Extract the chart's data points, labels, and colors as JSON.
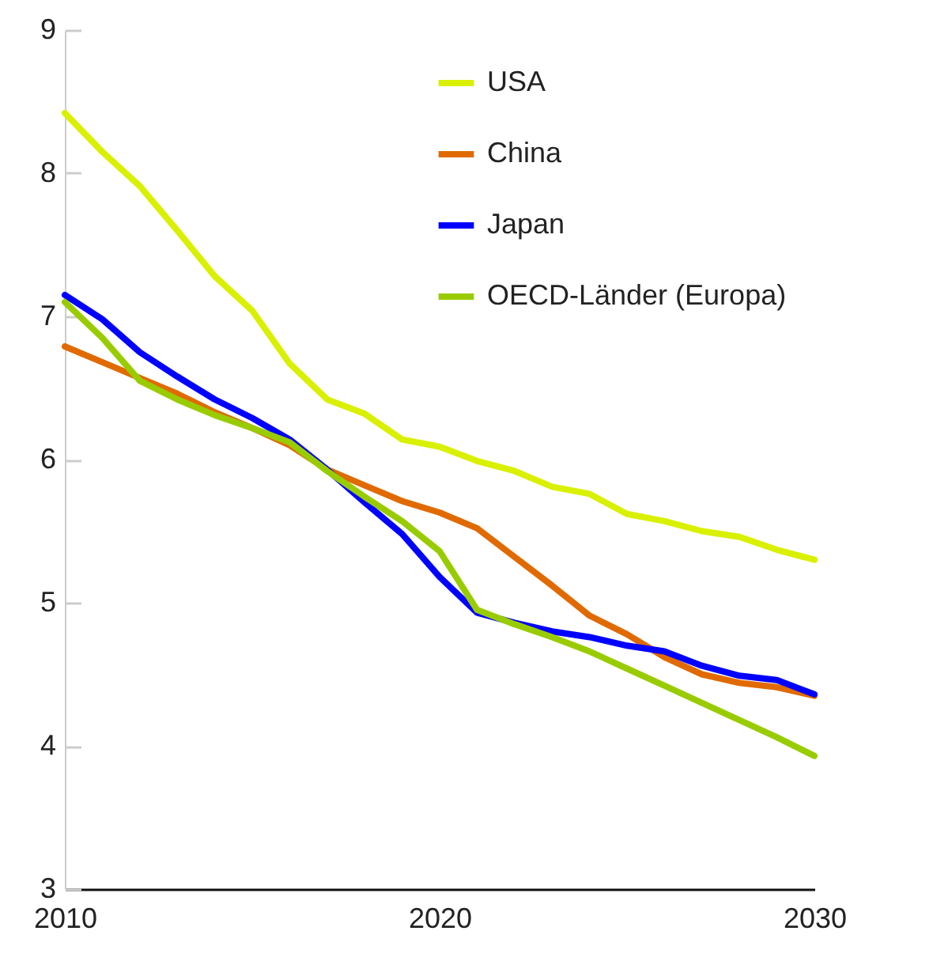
{
  "chart_data": {
    "type": "line",
    "x": [
      2010,
      2011,
      2012,
      2013,
      2014,
      2015,
      2016,
      2017,
      2018,
      2019,
      2020,
      2021,
      2022,
      2023,
      2024,
      2025,
      2026,
      2027,
      2028,
      2029,
      2030
    ],
    "series": [
      {
        "name": "USA",
        "color": "#d9f000",
        "values": [
          8.42,
          8.15,
          7.91,
          7.6,
          7.28,
          7.04,
          6.67,
          6.42,
          6.32,
          6.14,
          6.09,
          5.99,
          5.92,
          5.81,
          5.76,
          5.62,
          5.57,
          5.5,
          5.46,
          5.37,
          5.3
        ]
      },
      {
        "name": "China",
        "color": "#e06a00",
        "values": [
          6.79,
          6.68,
          6.57,
          6.46,
          6.33,
          6.22,
          6.1,
          5.93,
          5.82,
          5.71,
          5.63,
          5.52,
          5.32,
          5.12,
          4.91,
          4.78,
          4.62,
          4.5,
          4.44,
          4.41,
          4.35
        ]
      },
      {
        "name": "Japan",
        "color": "#0000ff",
        "values": [
          7.15,
          6.98,
          6.75,
          6.58,
          6.42,
          6.29,
          6.14,
          5.93,
          5.7,
          5.48,
          5.18,
          4.93,
          4.86,
          4.8,
          4.76,
          4.7,
          4.66,
          4.56,
          4.49,
          4.46,
          4.36
        ]
      },
      {
        "name": "OECD-Länder (Europa)",
        "color": "#99cc00",
        "values": [
          7.1,
          6.85,
          6.55,
          6.42,
          6.31,
          6.22,
          6.12,
          5.92,
          5.74,
          5.57,
          5.36,
          4.95,
          4.85,
          4.76,
          4.66,
          4.54,
          4.42,
          4.3,
          4.18,
          4.06,
          3.93
        ]
      }
    ],
    "xlim": [
      2010,
      2030
    ],
    "xticks": [
      2010,
      2020,
      2030
    ],
    "ylim": [
      3,
      9
    ],
    "yticks": [
      3,
      4,
      5,
      6,
      7,
      8,
      9
    ],
    "grid": false,
    "legend": "top right",
    "line_style": "solid"
  }
}
